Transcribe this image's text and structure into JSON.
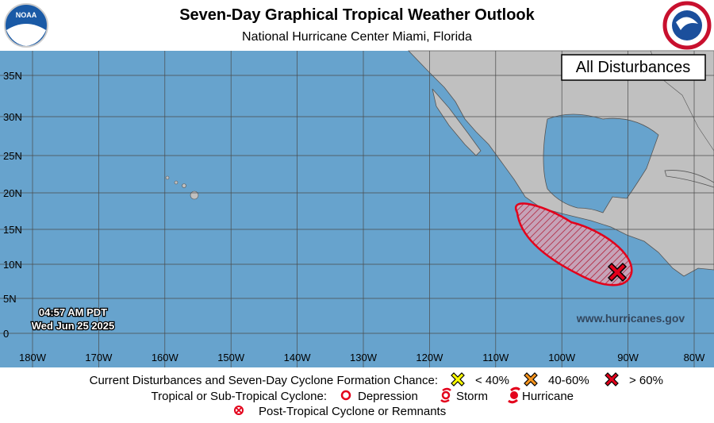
{
  "header": {
    "title": "Seven-Day Graphical Tropical Weather Outlook",
    "subtitle": "National Hurricane Center  Miami, Florida",
    "logo_left": "NOAA"
  },
  "map": {
    "view_label": "All Disturbances",
    "latitude_labels": [
      "35N",
      "30N",
      "25N",
      "20N",
      "15N",
      "10N",
      "5N",
      "0"
    ],
    "longitude_labels": [
      "180W",
      "170W",
      "160W",
      "150W",
      "140W",
      "130W",
      "120W",
      "110W",
      "100W",
      "90W",
      "80W"
    ],
    "time": "04:57 AM PDT",
    "date": "Wed Jun 25 2025",
    "url": "www.hurricanes.gov"
  },
  "legend": {
    "disturbances_label": "Current Disturbances and Seven-Day Cyclone Formation Chance:",
    "chances": [
      "< 40%",
      "40-60%",
      "> 60%"
    ],
    "cyclone_label": "Tropical or Sub-Tropical Cyclone:",
    "cyclone_types": [
      "Depression",
      "Storm",
      "Hurricane"
    ],
    "post_tropical": "Post-Tropical Cyclone or Remnants"
  }
}
